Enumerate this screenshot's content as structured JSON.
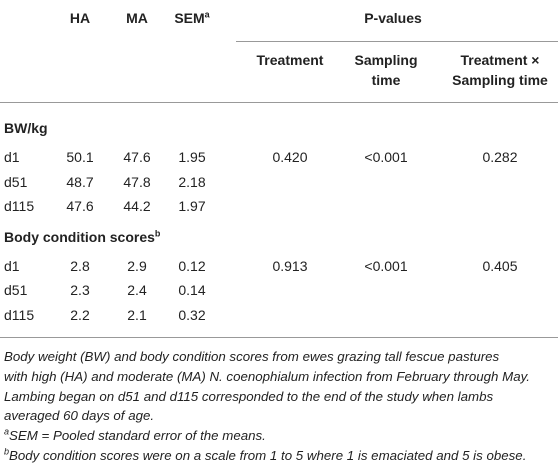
{
  "table": {
    "columns": [
      {
        "label": "HA"
      },
      {
        "label": "MA"
      },
      {
        "label": "SEM",
        "sup": "a"
      }
    ],
    "pvalues_header": "P-values",
    "pvalue_columns": [
      "Treatment",
      "Sampling time",
      "Treatment × Sampling time"
    ],
    "groups": [
      {
        "label": "BW/kg",
        "rows": [
          [
            "d1",
            "50.1",
            "47.6",
            "1.95",
            "0.420",
            "<0.001",
            "0.282"
          ],
          [
            "d51",
            "48.7",
            "47.8",
            "2.18"
          ],
          [
            "d115",
            "47.6",
            "44.2",
            "1.97"
          ]
        ]
      },
      {
        "label": "Body condition scores",
        "sup": "b",
        "rows": [
          [
            "d1",
            "2.8",
            "2.9",
            "0.12",
            "0.913",
            "<0.001",
            "0.405"
          ],
          [
            "d51",
            "2.3",
            "2.4",
            "0.14"
          ],
          [
            "d115",
            "2.2",
            "2.1",
            "0.32"
          ]
        ]
      }
    ]
  },
  "footnotes": {
    "note_lines": [
      "Body weight (BW) and body condition scores from ewes grazing tall fescue pastures",
      "with high (HA) and moderate (MA) N. coenophialum infection from February through May.",
      "Lambing began on d51 and d115 corresponded to the end of the study when lambs",
      "averaged 60 days of age."
    ],
    "items": [
      {
        "mark": "a",
        "text": "SEM = Pooled standard error of the means."
      },
      {
        "mark": "b",
        "text": "Body condition scores were on a scale from 1 to 5 where 1 is emaciated and 5 is obese."
      }
    ]
  }
}
